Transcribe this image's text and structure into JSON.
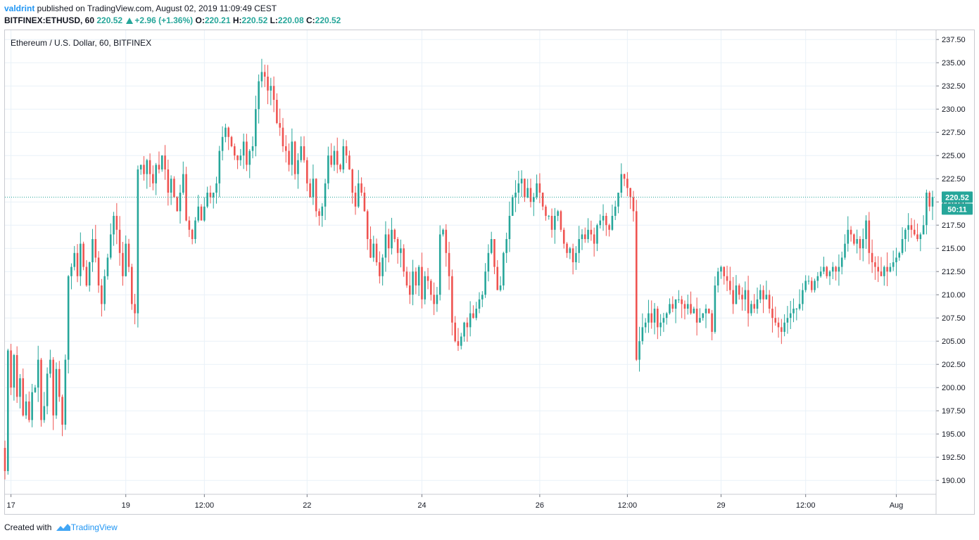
{
  "header": {
    "user": "valdrint",
    "published_text": " published on TradingView.com, August 02, 2019 11:09:49 CEST",
    "symbol": "BITFINEX:ETHUSD, 60",
    "last": "220.52",
    "change": "+2.96 (+1.36%)",
    "o_label": "O:",
    "o_value": "220.21",
    "h_label": "H:",
    "h_value": "220.52",
    "l_label": "L:",
    "l_value": "220.08",
    "c_label": "C:",
    "c_value": "220.52"
  },
  "footer": {
    "created_with": "Created with",
    "brand": "TradingView"
  },
  "colors": {
    "up": "#26a69a",
    "down": "#ef5350",
    "grid": "#e9f1f8",
    "axis_text": "#131722",
    "price_line": "#26a69a"
  },
  "chart_data": {
    "type": "candlestick",
    "title": "Ethereum / U.S. Dollar, 60, BITFINEX",
    "price_ticks": [
      "190.00",
      "192.50",
      "195.00",
      "197.50",
      "200.00",
      "202.50",
      "205.00",
      "207.50",
      "210.00",
      "212.50",
      "215.00",
      "217.50",
      "220.00",
      "222.50",
      "225.00",
      "227.50",
      "230.00",
      "232.50",
      "235.00",
      "237.50"
    ],
    "time_ticks": [
      {
        "label": "17",
        "t": 2
      },
      {
        "label": "19",
        "t": 40
      },
      {
        "label": "12:00",
        "t": 66
      },
      {
        "label": "22",
        "t": 100
      },
      {
        "label": "24",
        "t": 138
      },
      {
        "label": "26",
        "t": 177
      },
      {
        "label": "12:00",
        "t": 206
      },
      {
        "label": "29",
        "t": 237
      },
      {
        "label": "12:00",
        "t": 265
      },
      {
        "label": "Aug",
        "t": 295
      }
    ],
    "ylim": [
      188.5,
      238.5
    ],
    "last_price": "220.52",
    "countdown": "50:11",
    "current_price": 220.52,
    "closes": [
      191.0,
      204.0,
      200.0,
      203.5,
      199.0,
      201.0,
      197.0,
      198.5,
      196.5,
      199.5,
      200.0,
      203.0,
      196.5,
      198.0,
      201.5,
      203.0,
      197.0,
      202.0,
      199.0,
      196.0,
      203.0,
      212.0,
      213.0,
      214.5,
      212.0,
      215.5,
      213.0,
      211.0,
      213.5,
      216.0,
      214.0,
      211.0,
      209.0,
      212.0,
      214.0,
      216.5,
      218.5,
      217.0,
      214.5,
      212.0,
      215.5,
      213.0,
      209.0,
      208.0,
      223.5,
      224.0,
      223.0,
      224.5,
      223.0,
      222.0,
      224.0,
      223.5,
      225.0,
      223.5,
      221.0,
      222.5,
      220.5,
      219.0,
      221.0,
      223.0,
      218.0,
      217.0,
      216.0,
      218.0,
      219.5,
      218.0,
      219.5,
      221.0,
      220.5,
      221.0,
      222.0,
      225.5,
      227.0,
      228.0,
      227.0,
      226.0,
      225.0,
      224.5,
      225.0,
      226.5,
      224.0,
      225.5,
      226.0,
      230.0,
      233.0,
      234.0,
      233.5,
      232.0,
      232.5,
      231.0,
      228.5,
      228.0,
      226.0,
      225.5,
      224.0,
      226.5,
      223.0,
      224.5,
      226.0,
      224.5,
      222.0,
      220.5,
      222.5,
      219.0,
      218.5,
      219.5,
      222.0,
      225.0,
      224.0,
      225.5,
      224.0,
      223.5,
      226.0,
      225.0,
      223.5,
      221.0,
      219.5,
      222.0,
      221.0,
      219.0,
      216.0,
      214.0,
      215.5,
      213.5,
      212.0,
      214.0,
      216.5,
      215.0,
      217.0,
      216.0,
      214.5,
      215.0,
      212.5,
      211.0,
      210.0,
      212.5,
      211.0,
      213.0,
      209.5,
      212.0,
      211.5,
      210.0,
      209.0,
      210.0,
      216.5,
      217.0,
      214.5,
      212.0,
      207.0,
      205.0,
      204.5,
      205.5,
      207.0,
      206.5,
      208.0,
      207.5,
      208.5,
      209.5,
      210.0,
      212.5,
      214.5,
      216.0,
      213.0,
      210.5,
      211.0,
      214.5,
      216.0,
      218.5,
      220.5,
      221.0,
      222.0,
      222.5,
      220.5,
      221.5,
      220.0,
      220.5,
      222.0,
      221.0,
      219.5,
      218.5,
      218.5,
      217.0,
      218.5,
      219.0,
      217.0,
      215.5,
      214.5,
      215.0,
      213.5,
      214.5,
      216.0,
      216.5,
      216.0,
      217.0,
      216.5,
      215.5,
      217.5,
      218.0,
      218.5,
      217.5,
      217.0,
      218.5,
      219.5,
      221.0,
      223.0,
      222.5,
      221.5,
      220.5,
      219.0,
      203.0,
      205.0,
      206.5,
      207.0,
      208.0,
      207.0,
      208.5,
      206.5,
      207.0,
      207.5,
      208.0,
      209.0,
      208.5,
      209.5,
      209.5,
      209.0,
      208.5,
      209.0,
      208.0,
      208.5,
      207.0,
      207.5,
      208.0,
      208.5,
      208.0,
      206.0,
      211.0,
      212.5,
      213.0,
      212.0,
      211.5,
      210.5,
      209.0,
      211.0,
      210.0,
      209.5,
      210.5,
      208.0,
      209.0,
      208.5,
      209.5,
      210.5,
      209.5,
      210.0,
      208.5,
      207.5,
      207.0,
      206.5,
      206.0,
      207.0,
      207.5,
      208.0,
      208.5,
      208.5,
      209.0,
      210.5,
      211.5,
      211.5,
      210.5,
      211.5,
      212.0,
      212.5,
      213.0,
      212.0,
      212.5,
      213.0,
      212.5,
      213.0,
      214.0,
      215.5,
      217.0,
      216.5,
      215.5,
      216.0,
      215.0,
      216.0,
      218.0,
      214.5,
      213.5,
      213.0,
      212.5,
      212.0,
      213.0,
      212.5,
      213.0,
      213.5,
      214.0,
      214.5,
      216.0,
      217.0,
      217.5,
      217.0,
      216.5,
      216.0,
      216.5,
      217.5,
      221.0,
      219.5,
      220.52
    ]
  }
}
